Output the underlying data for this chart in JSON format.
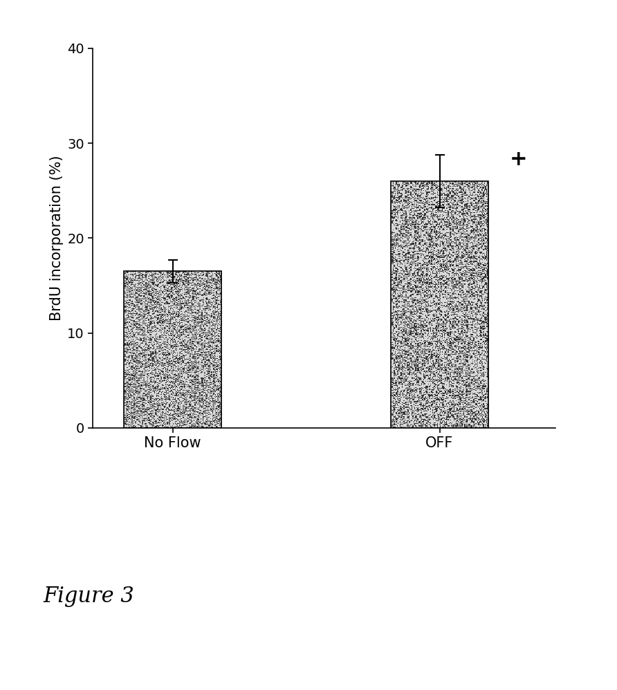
{
  "categories": [
    "No Flow",
    "OFF"
  ],
  "values": [
    16.5,
    26.0
  ],
  "errors": [
    1.2,
    2.8
  ],
  "bar_positions": [
    1.0,
    2.5
  ],
  "bar_width": 0.55,
  "ylim": [
    0,
    40
  ],
  "yticks": [
    0,
    10,
    20,
    30,
    40
  ],
  "ylabel": "BrdU incorporation (%)",
  "ylabel_fontsize": 15,
  "tick_fontsize": 14,
  "xtick_fontsize": 15,
  "significance_symbol": "+",
  "significance_fontsize": 22,
  "figure_label": "Figure 3",
  "figure_label_fontsize": 22,
  "background_color": "#ffffff",
  "bar_edge_color": "#000000",
  "error_cap_size": 5,
  "error_linewidth": 1.5,
  "noise_density": 0.35,
  "bar_base_color_light": 0.82,
  "bar_base_color_dark": 0.25
}
